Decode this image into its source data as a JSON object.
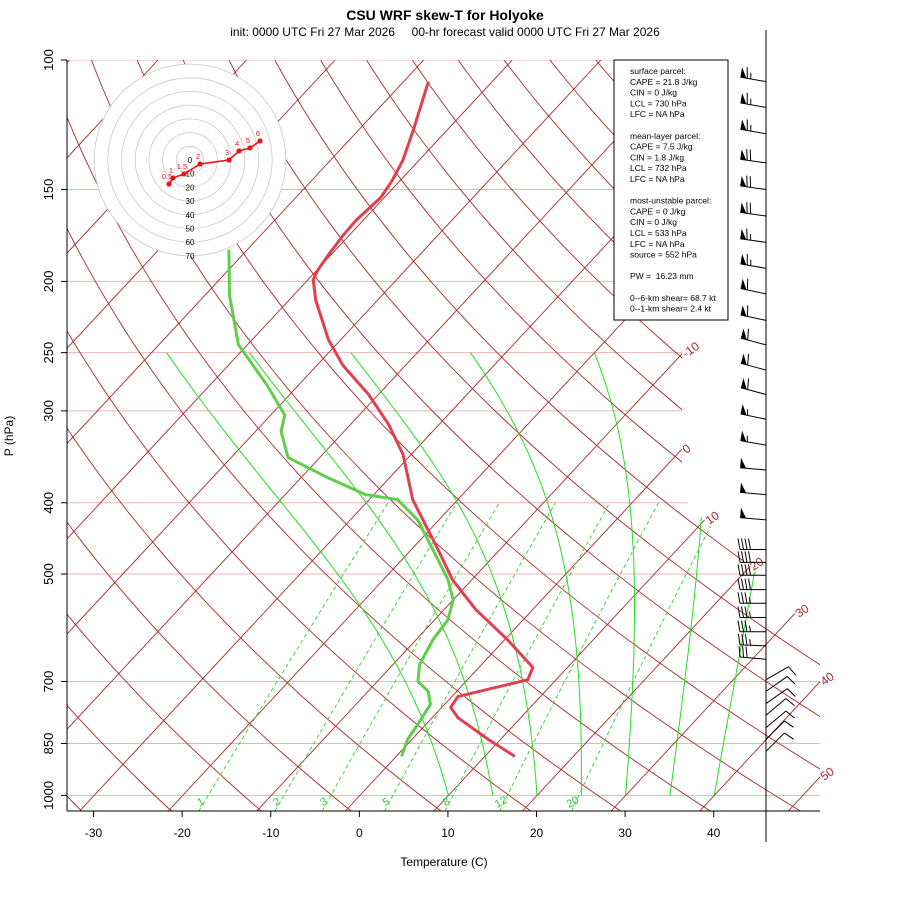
{
  "chart_data": {
    "type": "skewt",
    "title": "CSU WRF skew-T for Holyoke",
    "subtitle": "init: 0000 UTC Fri 27 Mar 2026     00-hr forecast valid 0000 UTC Fri 27 Mar 2026",
    "xlabel": "Temperature (C)",
    "ylabel": "P (hPa)",
    "xlim": [
      -33,
      52
    ],
    "xticks": [
      -30,
      -20,
      -10,
      0,
      10,
      20,
      30,
      40
    ],
    "ylim": [
      100,
      1050
    ],
    "yticks": [
      100,
      150,
      200,
      250,
      300,
      400,
      500,
      700,
      850,
      1000
    ],
    "log_y": true,
    "grid": true,
    "grid_color": "#e8b4b4",
    "isotherms": [
      -110,
      -100,
      -90,
      -80,
      -70,
      -60,
      -50,
      -40,
      -30,
      -20,
      -10,
      0,
      10,
      20,
      30,
      40,
      50
    ],
    "isotherm_labels": [
      -10,
      0,
      10,
      20,
      30,
      40,
      50
    ],
    "isotherm_color": "#a52a2a",
    "dry_adiabats": [
      240,
      250,
      260,
      270,
      280,
      290,
      300,
      310,
      320,
      330,
      340,
      350,
      360,
      370,
      380,
      390,
      400,
      410,
      420,
      430,
      440,
      450
    ],
    "dry_adiabat_color": "#a52a2a",
    "moist_adiabats": [
      10,
      15,
      20,
      25,
      30,
      35,
      40
    ],
    "moist_adiabat_top": 250,
    "moist_adiabat_color": "#22e022",
    "mixing_ratios": [
      1,
      2,
      3,
      5,
      8,
      12,
      20
    ],
    "mixing_ratio_top": 400,
    "mixing_ratio_color": "#33cc33",
    "series": [
      {
        "color": "#e0404f",
        "pressure": [
          885,
          839,
          784,
          759,
          734,
          696,
          670,
          614,
          559,
          509,
          463,
          422,
          396,
          344,
          313,
          285,
          260,
          240,
          212,
          199,
          193,
          184,
          173,
          165,
          154,
          146,
          137,
          124,
          107
        ],
        "values": [
          13.4,
          8.6,
          2.9,
          1.0,
          0.7,
          6.8,
          6.1,
          0.3,
          -6.4,
          -12.2,
          -17.0,
          -21.8,
          -25.1,
          -30.9,
          -35.7,
          -41.1,
          -47.1,
          -51.4,
          -57.0,
          -59.4,
          -59.9,
          -60.3,
          -60.7,
          -60.8,
          -60.4,
          -60.9,
          -61.8,
          -63.9,
          -67.2
        ]
      },
      {
        "color": "#5fcf4a",
        "pressure": [
          885,
          839,
          802,
          752,
          722,
          700,
          664,
          614,
          577,
          542,
          509,
          471,
          422,
          396,
          390,
          370,
          347,
          320,
          304,
          277,
          244,
          209,
          181
        ],
        "values": [
          0.6,
          -0.5,
          -0.9,
          -1.6,
          -3.2,
          -5.4,
          -7.0,
          -8.1,
          -8.5,
          -10.0,
          -12.7,
          -16.7,
          -22.4,
          -26.8,
          -30.9,
          -36.9,
          -43.6,
          -47.1,
          -48.4,
          -53.5,
          -61.0,
          -67.2,
          -72.1
        ]
      }
    ],
    "wind": {
      "pressure": [
        107,
        116,
        126,
        138,
        150,
        163,
        177,
        192,
        208,
        226,
        244,
        264,
        285,
        308,
        334,
        361,
        390,
        422,
        463,
        482,
        502,
        525,
        548,
        573,
        599,
        626,
        653,
        696,
        722,
        750,
        778,
        809,
        839,
        871
      ],
      "speed": [
        65,
        65,
        65,
        70,
        70,
        70,
        65,
        65,
        60,
        60,
        60,
        60,
        60,
        55,
        55,
        50,
        50,
        50,
        40,
        40,
        40,
        40,
        35,
        35,
        35,
        35,
        30,
        10,
        10,
        10,
        10,
        10,
        10,
        10
      ],
      "direction": [
        280,
        280,
        280,
        278,
        278,
        278,
        278,
        280,
        282,
        282,
        285,
        285,
        285,
        282,
        280,
        275,
        275,
        275,
        270,
        270,
        270,
        270,
        270,
        270,
        270,
        272,
        275,
        60,
        55,
        55,
        50,
        50,
        45,
        45
      ],
      "color": "#000000"
    },
    "hodograph": {
      "rings": [
        0,
        10,
        20,
        30,
        40,
        50,
        60,
        70
      ],
      "color": "#ee1111",
      "u": [
        -15.3,
        -12.4,
        -4.4,
        7.3,
        28.5,
        35.8,
        43.8,
        51.1
      ],
      "v": [
        -17.5,
        -13.1,
        -10.2,
        -2.9,
        0,
        6.6,
        8.8,
        13.9
      ],
      "heights": [
        0.5,
        1,
        1.5,
        2,
        3,
        4,
        5,
        6
      ]
    },
    "info_box": {
      "parcels": [
        {
          "heading": "surface parcel:",
          "lines": [
            "CAPE = 21.8 J/kg",
            "CIN = 0 J/kg",
            "LCL = 730 hPa",
            "LFC = NA hPa"
          ]
        },
        {
          "heading": "mean-layer parcel:",
          "lines": [
            "CAPE = 7.5 J/kg",
            "CIN = 1.8 J/kg",
            "LCL = 732 hPa",
            "LFC = NA hPa"
          ]
        },
        {
          "heading": "most-unstable parcel:",
          "lines": [
            "CAPE = 0 J/kg",
            "CIN = 0 J/kg",
            "LCL = 533 hPa",
            "LFC = NA hPa",
            "source = 552 hPa"
          ]
        }
      ],
      "pw": "PW =  16.23 mm",
      "shear": [
        "0--6-km shear= 68.7 kt",
        "0--1-km shear= 2.4 kt"
      ]
    }
  }
}
